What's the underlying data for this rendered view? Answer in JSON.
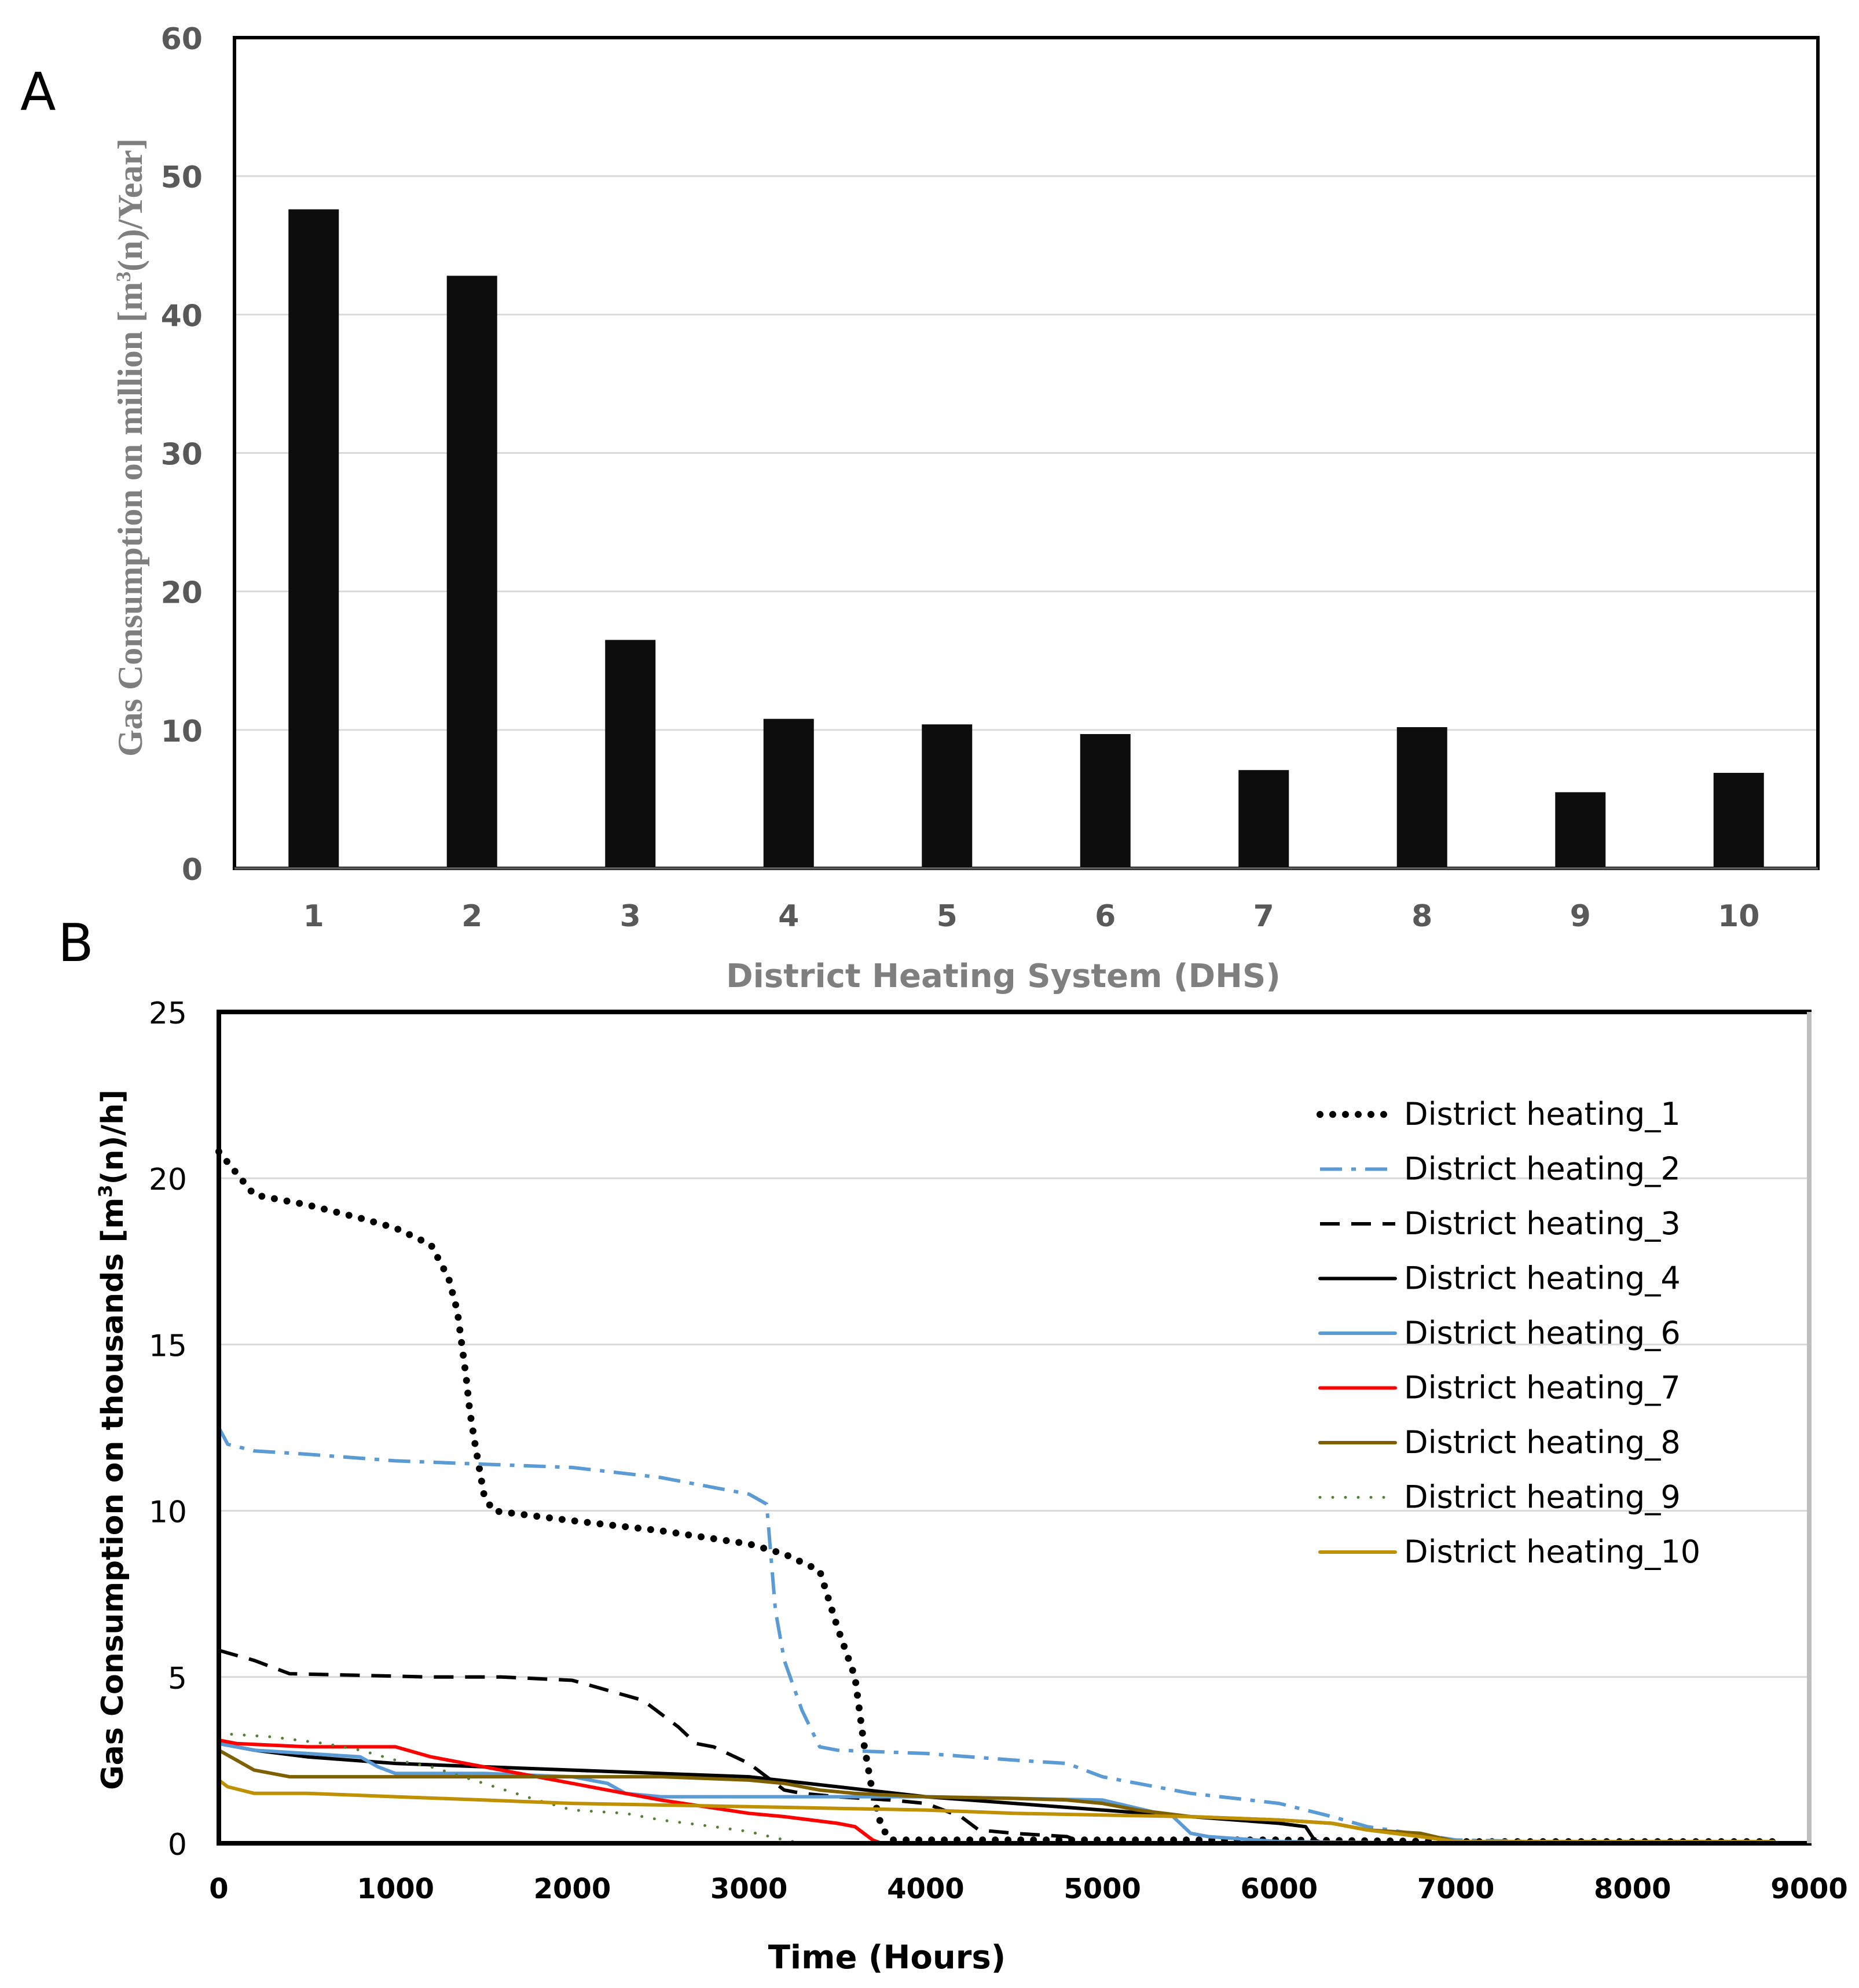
{
  "colors": {
    "bar": "#0d0d0d",
    "grid": "#d9d9d9",
    "frame": "#000000",
    "tickA": "#595959",
    "axisTitleA": "#7f7f7f"
  },
  "chart_data": [
    {
      "panel_label": "A",
      "type": "bar",
      "title": "",
      "categories": [
        "1",
        "2",
        "3",
        "4",
        "5",
        "6",
        "7",
        "8",
        "9",
        "10"
      ],
      "values": [
        47.6,
        42.8,
        16.5,
        10.8,
        10.4,
        9.7,
        7.1,
        10.2,
        5.5,
        6.9
      ],
      "xlabel": "District Heating System (DHS)",
      "ylabel_prefix": "Gas Consumption on million [m",
      "ylabel_sup": "3",
      "ylabel_suffix": "(n)/Year]",
      "ylim": [
        0,
        60
      ],
      "yticks": [
        0,
        10,
        20,
        30,
        40,
        50,
        60
      ],
      "grid": true,
      "legend": "none"
    },
    {
      "panel_label": "B",
      "type": "line",
      "title": "",
      "xlabel": "Time (Hours)",
      "ylabel_prefix": "Gas Consumption on thousands [m",
      "ylabel_sup": "3",
      "ylabel_suffix": "(n)/h]",
      "xlim": [
        0,
        9000
      ],
      "ylim": [
        0,
        25
      ],
      "xticks": [
        0,
        1000,
        2000,
        3000,
        4000,
        5000,
        6000,
        7000,
        8000,
        9000
      ],
      "yticks": [
        0,
        5,
        10,
        15,
        20,
        25
      ],
      "grid": true,
      "legend": "top-right",
      "series": [
        {
          "name": "District heating_1",
          "color": "#000000",
          "dash": "dotted",
          "x": [
            0,
            200,
            500,
            800,
            1000,
            1200,
            1300,
            1350,
            1400,
            1420,
            1450,
            1500,
            1550,
            1700,
            2000,
            2500,
            3000,
            3200,
            3400,
            3500,
            3600,
            3650,
            3700,
            3750,
            3800,
            4000,
            5000,
            6000,
            7000,
            8000,
            8800
          ],
          "y": [
            20.8,
            19.5,
            19.2,
            18.8,
            18.5,
            18.0,
            17.0,
            16.0,
            14.0,
            13.0,
            12.0,
            10.5,
            10.0,
            9.9,
            9.7,
            9.4,
            9.0,
            8.7,
            8.2,
            6.5,
            5.0,
            3.0,
            1.5,
            0.5,
            0.1,
            0.1,
            0.1,
            0.1,
            0.05,
            0.05,
            0.05
          ]
        },
        {
          "name": "District heating_2",
          "color": "#5b9bd5",
          "dash": "dashdot",
          "x": [
            0,
            50,
            200,
            500,
            1000,
            1500,
            2000,
            2500,
            2800,
            3000,
            3100,
            3150,
            3200,
            3300,
            3400,
            3500,
            4000,
            4500,
            4800,
            5000,
            5200,
            5500,
            6000,
            6300,
            6500,
            7000,
            7500,
            8000,
            8800
          ],
          "y": [
            12.5,
            12.0,
            11.8,
            11.7,
            11.5,
            11.4,
            11.3,
            11.0,
            10.7,
            10.5,
            10.2,
            7.0,
            5.5,
            4.0,
            2.9,
            2.8,
            2.7,
            2.5,
            2.4,
            2.0,
            1.8,
            1.5,
            1.2,
            0.8,
            0.5,
            0.1,
            0.05,
            0.05,
            0.05
          ]
        },
        {
          "name": "District heating_3",
          "color": "#000000",
          "dash": "dashed",
          "x": [
            0,
            200,
            400,
            800,
            1200,
            1600,
            2000,
            2200,
            2400,
            2600,
            2700,
            2800,
            3000,
            3100,
            3200,
            3300,
            3500,
            3800,
            4000,
            4200,
            4300,
            4500,
            4800,
            4900,
            5000,
            6000,
            7000,
            8800
          ],
          "y": [
            5.8,
            5.5,
            5.1,
            5.05,
            5.0,
            5.0,
            4.9,
            4.6,
            4.3,
            3.5,
            3.0,
            2.9,
            2.4,
            2.0,
            1.6,
            1.5,
            1.4,
            1.3,
            1.2,
            0.8,
            0.4,
            0.3,
            0.2,
            0.0,
            0.0,
            0.0,
            0.0,
            0.0
          ]
        },
        {
          "name": "District heating_4",
          "color": "#000000",
          "dash": "solid",
          "x": [
            0,
            200,
            500,
            1000,
            1500,
            2000,
            2500,
            3000,
            3500,
            4000,
            4500,
            5000,
            5500,
            6000,
            6150,
            6200,
            6250,
            7000,
            8800
          ],
          "y": [
            3.0,
            2.8,
            2.6,
            2.4,
            2.3,
            2.2,
            2.1,
            2.0,
            1.7,
            1.4,
            1.2,
            1.0,
            0.8,
            0.6,
            0.5,
            0.1,
            0.0,
            0.0,
            0.0
          ]
        },
        {
          "name": "District heating_6",
          "color": "#5b9bd5",
          "dash": "solid",
          "x": [
            0,
            200,
            500,
            800,
            900,
            1000,
            1500,
            2000,
            2200,
            2300,
            2500,
            3000,
            4000,
            5000,
            5400,
            5500,
            5600,
            6000,
            7000,
            8800
          ],
          "y": [
            3.0,
            2.8,
            2.7,
            2.6,
            2.3,
            2.1,
            2.1,
            2.0,
            1.8,
            1.5,
            1.4,
            1.4,
            1.4,
            1.3,
            0.8,
            0.3,
            0.2,
            0.05,
            0.0,
            0.0
          ]
        },
        {
          "name": "District heating_7",
          "color": "#ff0000",
          "dash": "solid",
          "x": [
            0,
            100,
            500,
            1000,
            1200,
            1500,
            2000,
            2500,
            3000,
            3200,
            3500,
            3600,
            3700,
            3750,
            4000,
            5000,
            6000,
            7000,
            8800
          ],
          "y": [
            3.1,
            3.0,
            2.9,
            2.9,
            2.6,
            2.3,
            1.8,
            1.3,
            0.9,
            0.8,
            0.6,
            0.5,
            0.1,
            0.0,
            0.0,
            0.0,
            0.0,
            0.0,
            0.0
          ]
        },
        {
          "name": "District heating_8",
          "color": "#7f6000",
          "dash": "solid",
          "x": [
            0,
            100,
            200,
            400,
            800,
            1200,
            1800,
            2500,
            3000,
            3200,
            3400,
            3600,
            4000,
            4500,
            4800,
            5000,
            5200,
            5500,
            6000,
            6300,
            6500,
            6800,
            7000,
            8800
          ],
          "y": [
            2.8,
            2.5,
            2.2,
            2.0,
            2.0,
            2.0,
            2.0,
            2.0,
            1.9,
            1.8,
            1.6,
            1.5,
            1.4,
            1.35,
            1.3,
            1.2,
            1.0,
            0.8,
            0.7,
            0.6,
            0.4,
            0.3,
            0.05,
            0.0
          ]
        },
        {
          "name": "District heating_9",
          "color": "#548235",
          "dash": "dotted",
          "x": [
            0,
            300,
            600,
            800,
            1000,
            1200,
            1500,
            1800,
            2000,
            2300,
            2500,
            2800,
            3000,
            3200,
            3300,
            4000,
            6000,
            8800
          ],
          "y": [
            3.3,
            3.2,
            3.0,
            2.8,
            2.5,
            2.3,
            1.8,
            1.3,
            1.0,
            0.9,
            0.7,
            0.5,
            0.35,
            0.1,
            0.0,
            0.0,
            0.0,
            0.0
          ]
        },
        {
          "name": "District heating_10",
          "color": "#bf9000",
          "dash": "solid",
          "x": [
            0,
            50,
            200,
            500,
            1000,
            1500,
            2000,
            2500,
            3000,
            3500,
            4000,
            4500,
            5000,
            5500,
            6000,
            6300,
            6500,
            6800,
            7000,
            8800
          ],
          "y": [
            1.9,
            1.7,
            1.5,
            1.5,
            1.4,
            1.3,
            1.2,
            1.15,
            1.1,
            1.05,
            1.0,
            0.9,
            0.85,
            0.8,
            0.7,
            0.6,
            0.4,
            0.2,
            0.05,
            0.05
          ]
        }
      ]
    }
  ]
}
